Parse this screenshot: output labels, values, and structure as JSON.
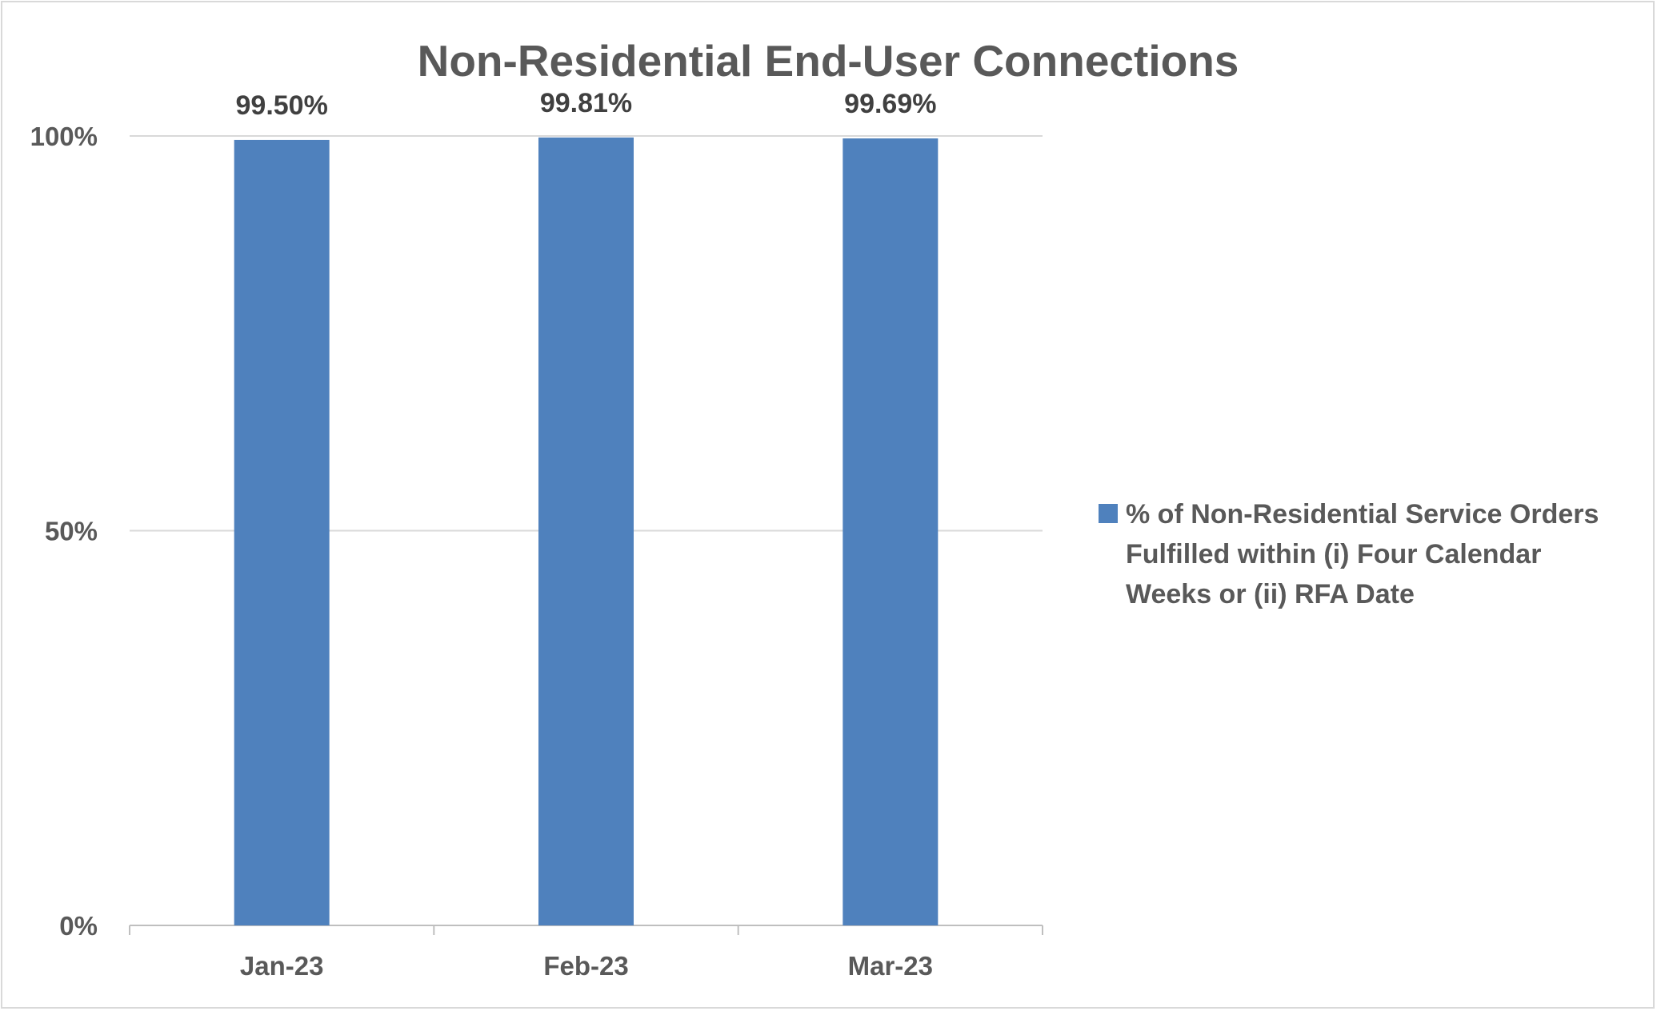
{
  "chart_data": {
    "type": "bar",
    "title": "Non-Residential End-User Connections",
    "categories": [
      "Jan-23",
      "Feb-23",
      "Mar-23"
    ],
    "series": [
      {
        "name": "% of Non-Residential Service Orders Fulfilled within (i) Four Calendar Weeks or (ii) RFA Date",
        "values": [
          99.5,
          99.81,
          99.69
        ],
        "color": "#4f81bd"
      }
    ],
    "data_labels": [
      "99.50%",
      "99.81%",
      "99.69%"
    ],
    "y_ticks": [
      "0%",
      "50%",
      "100%"
    ],
    "y_tick_values": [
      0,
      50,
      100
    ],
    "ylim": [
      0,
      100
    ],
    "xlabel": "",
    "ylabel": "",
    "grid": true,
    "legend_position": "right",
    "legend_lines": [
      "% of Non-Residential Service Orders",
      "Fulfilled within (i) Four Calendar",
      "Weeks or (ii) RFA Date"
    ]
  }
}
